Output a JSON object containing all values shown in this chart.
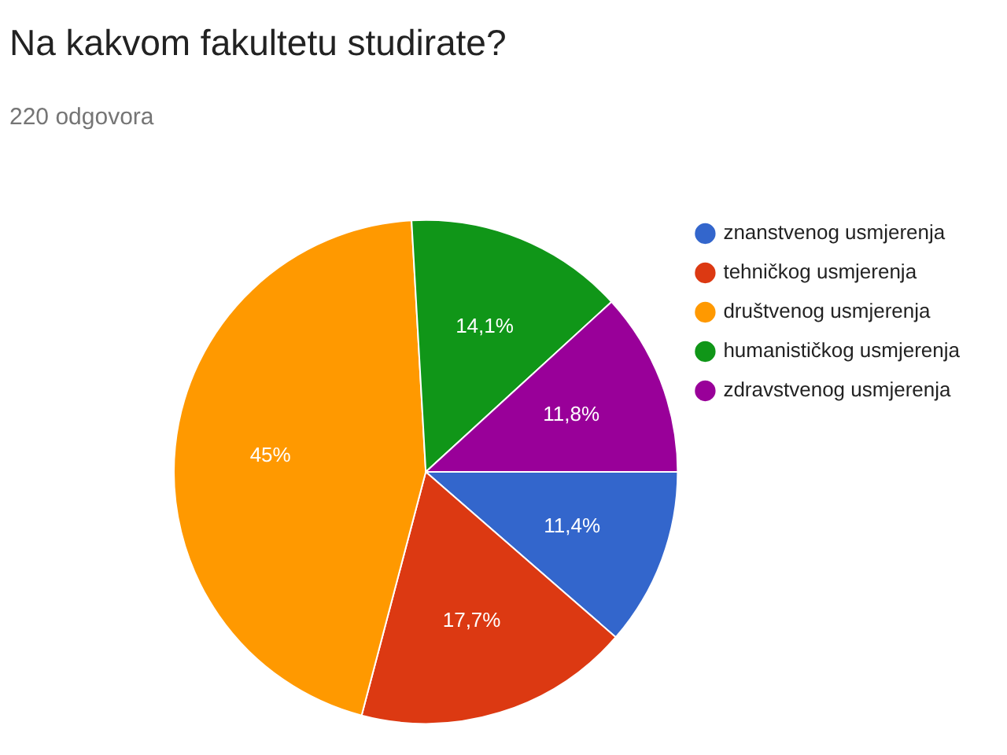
{
  "chart_data": {
    "type": "pie",
    "title": "Na kakvom fakultetu studirate?",
    "subtitle": "220 odgovora",
    "categories": [
      "znanstvenog usmjerenja",
      "tehničkog usmjerenja",
      "društvenog usmjerenja",
      "humanističkog usmjerenja",
      "zdravstvenog usmjerenja"
    ],
    "values": [
      11.4,
      17.7,
      45,
      14.1,
      11.8
    ],
    "colors": [
      "#3366cc",
      "#dc3912",
      "#ff9900",
      "#109618",
      "#990099"
    ],
    "value_labels": [
      "11,4%",
      "17,7%",
      "45%",
      "14,1%",
      "11,8%"
    ],
    "legend": "right"
  }
}
